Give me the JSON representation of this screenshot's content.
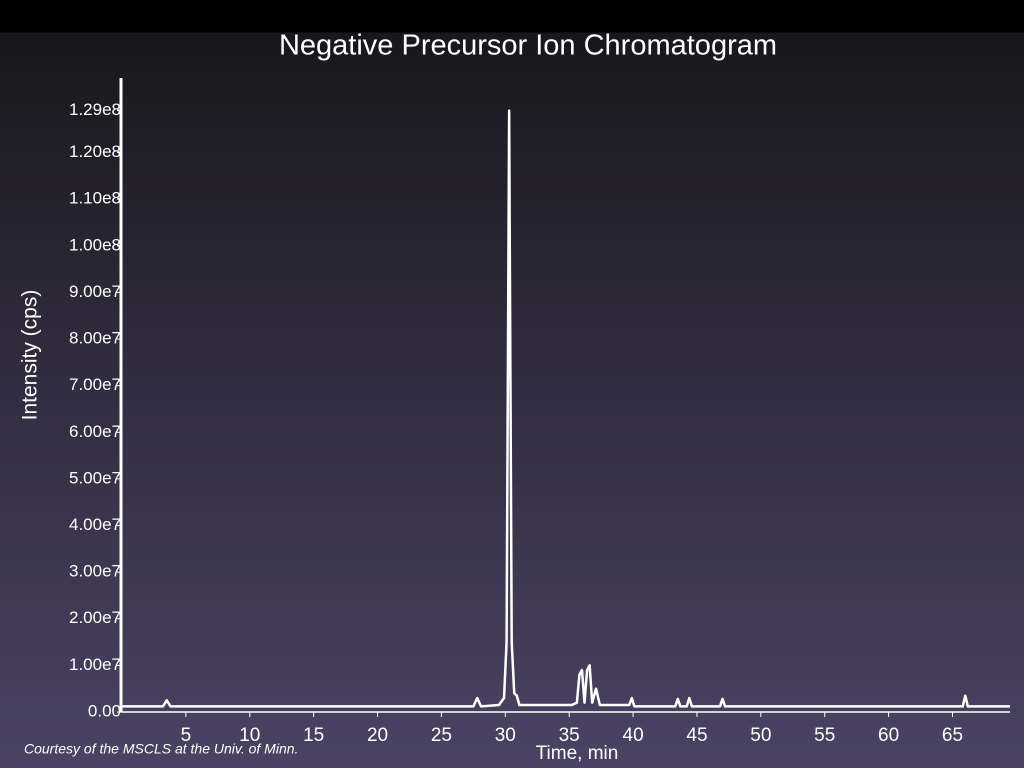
{
  "chart_data": {
    "type": "line",
    "title": "Negative Precursor Ion Chromatogram",
    "x_label": "Time, min",
    "y_label": "Intensity (cps)",
    "source": "Courtesy of the MSCLS at the Univ. of Minn.",
    "color": "#ffffff",
    "x": [
      0,
      3.2,
      3.5,
      3.8,
      23,
      27.5,
      27.8,
      28.1,
      29.5,
      29.9,
      30.1,
      30.3,
      30.5,
      30.7,
      30.9,
      31.1,
      35.2,
      35.6,
      35.8,
      36.0,
      36.2,
      36.4,
      36.6,
      36.8,
      37.1,
      37.4,
      39.7,
      39.9,
      40.1,
      43.3,
      43.5,
      43.7,
      44.2,
      44.4,
      44.6,
      46.8,
      47.0,
      47.2,
      65.8,
      66.0,
      66.2,
      69.5
    ],
    "values": [
      1200000,
      1200000,
      2500000,
      1200000,
      1200000,
      1200000,
      3000000,
      1200000,
      1500000,
      3000000,
      15000000,
      129000000,
      15000000,
      4000000,
      3500000,
      1500000,
      1500000,
      2000000,
      8000000,
      9000000,
      2000000,
      9000000,
      10000000,
      2000000,
      5000000,
      1500000,
      1500000,
      3000000,
      1200000,
      1200000,
      2800000,
      1200000,
      1200000,
      3000000,
      1200000,
      1200000,
      2800000,
      1200000,
      1200000,
      3500000,
      1200000,
      1200000
    ],
    "xlim": [
      0,
      69.5
    ],
    "ylim": [
      0,
      136000000
    ],
    "xticks": [
      5,
      10,
      15,
      20,
      25,
      30,
      35,
      40,
      45,
      50,
      55,
      60,
      65
    ],
    "yticks": [
      {
        "value": 0,
        "label": "0.00"
      },
      {
        "value": 10000000,
        "label": "1.00e7"
      },
      {
        "value": 20000000,
        "label": "2.00e7"
      },
      {
        "value": 30000000,
        "label": "3.00e7"
      },
      {
        "value": 40000000,
        "label": "4.00e7"
      },
      {
        "value": 50000000,
        "label": "5.00e7"
      },
      {
        "value": 60000000,
        "label": "6.00e7"
      },
      {
        "value": 70000000,
        "label": "7.00e7"
      },
      {
        "value": 80000000,
        "label": "8.00e7"
      },
      {
        "value": 90000000,
        "label": "9.00e7"
      },
      {
        "value": 100000000,
        "label": "1.00e8"
      },
      {
        "value": 110000000,
        "label": "1.10e8"
      },
      {
        "value": 120000000,
        "label": "1.20e8"
      },
      {
        "value": 129000000,
        "label": "1.29e8"
      }
    ],
    "grid": false
  }
}
